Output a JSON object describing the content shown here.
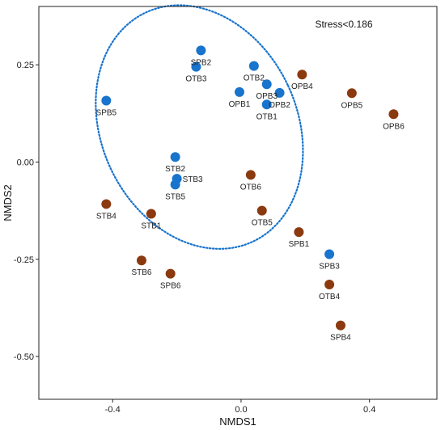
{
  "chart_data": {
    "type": "scatter",
    "xlabel": "NMDS1",
    "ylabel": "NMDS2",
    "xlim": [
      -0.63,
      0.61
    ],
    "ylim": [
      -0.61,
      0.4
    ],
    "xticks": [
      -0.4,
      0.0,
      0.4
    ],
    "xtick_labels": [
      "-0.4",
      "0.0",
      "0.4"
    ],
    "yticks": [
      -0.5,
      -0.25,
      0.0,
      0.25
    ],
    "ytick_labels": [
      "-0.50",
      "-0.25",
      "0.00",
      "0.25"
    ],
    "grid": false,
    "annotation": "Stress<0.186",
    "colors": {
      "blue_group": "#1874CD",
      "brown_group": "#8B3A0F",
      "ellipse": "#1874CD"
    },
    "ellipse": {
      "center": [
        -0.13,
        0.09
      ],
      "rx": 0.305,
      "ry": 0.325,
      "rotation_deg": -25
    },
    "points": [
      {
        "label": "SPB2",
        "x": -0.125,
        "y": 0.287,
        "group": "blue_group",
        "label_pos": "below"
      },
      {
        "label": "OTB3",
        "x": -0.14,
        "y": 0.245,
        "group": "blue_group",
        "label_pos": "below"
      },
      {
        "label": "OTB2",
        "x": 0.04,
        "y": 0.247,
        "group": "blue_group",
        "label_pos": "below"
      },
      {
        "label": "OPB3",
        "x": 0.08,
        "y": 0.2,
        "group": "blue_group",
        "label_pos": "below"
      },
      {
        "label": "OPB1",
        "x": -0.005,
        "y": 0.18,
        "group": "blue_group",
        "label_pos": "below"
      },
      {
        "label": "OPB2",
        "x": 0.12,
        "y": 0.178,
        "group": "blue_group",
        "label_pos": "below"
      },
      {
        "label": "OTB1",
        "x": 0.08,
        "y": 0.148,
        "group": "blue_group",
        "label_pos": "below"
      },
      {
        "label": "SPB5",
        "x": -0.42,
        "y": 0.158,
        "group": "blue_group",
        "label_pos": "below"
      },
      {
        "label": "STB2",
        "x": -0.205,
        "y": 0.013,
        "group": "blue_group",
        "label_pos": "below"
      },
      {
        "label": "STB3",
        "x": -0.2,
        "y": -0.043,
        "group": "blue_group",
        "label_pos": "right"
      },
      {
        "label": "STB5",
        "x": -0.205,
        "y": -0.058,
        "group": "blue_group",
        "label_pos": "below"
      },
      {
        "label": "SPB3",
        "x": 0.275,
        "y": -0.237,
        "group": "blue_group",
        "label_pos": "below"
      },
      {
        "label": "OPB4",
        "x": 0.19,
        "y": 0.225,
        "group": "brown_group",
        "label_pos": "below"
      },
      {
        "label": "OPB5",
        "x": 0.345,
        "y": 0.177,
        "group": "brown_group",
        "label_pos": "below"
      },
      {
        "label": "OPB6",
        "x": 0.475,
        "y": 0.123,
        "group": "brown_group",
        "label_pos": "below"
      },
      {
        "label": "OTB6",
        "x": 0.03,
        "y": -0.033,
        "group": "brown_group",
        "label_pos": "below"
      },
      {
        "label": "OTB5",
        "x": 0.065,
        "y": -0.125,
        "group": "brown_group",
        "label_pos": "below"
      },
      {
        "label": "SPB1",
        "x": 0.18,
        "y": -0.18,
        "group": "brown_group",
        "label_pos": "below"
      },
      {
        "label": "STB4",
        "x": -0.42,
        "y": -0.108,
        "group": "brown_group",
        "label_pos": "below"
      },
      {
        "label": "STB1",
        "x": -0.28,
        "y": -0.133,
        "group": "brown_group",
        "label_pos": "below"
      },
      {
        "label": "STB6",
        "x": -0.31,
        "y": -0.253,
        "group": "brown_group",
        "label_pos": "below"
      },
      {
        "label": "SPB6",
        "x": -0.22,
        "y": -0.287,
        "group": "brown_group",
        "label_pos": "below"
      },
      {
        "label": "OTB4",
        "x": 0.275,
        "y": -0.315,
        "group": "brown_group",
        "label_pos": "below"
      },
      {
        "label": "SPB4",
        "x": 0.31,
        "y": -0.42,
        "group": "brown_group",
        "label_pos": "below"
      }
    ]
  }
}
